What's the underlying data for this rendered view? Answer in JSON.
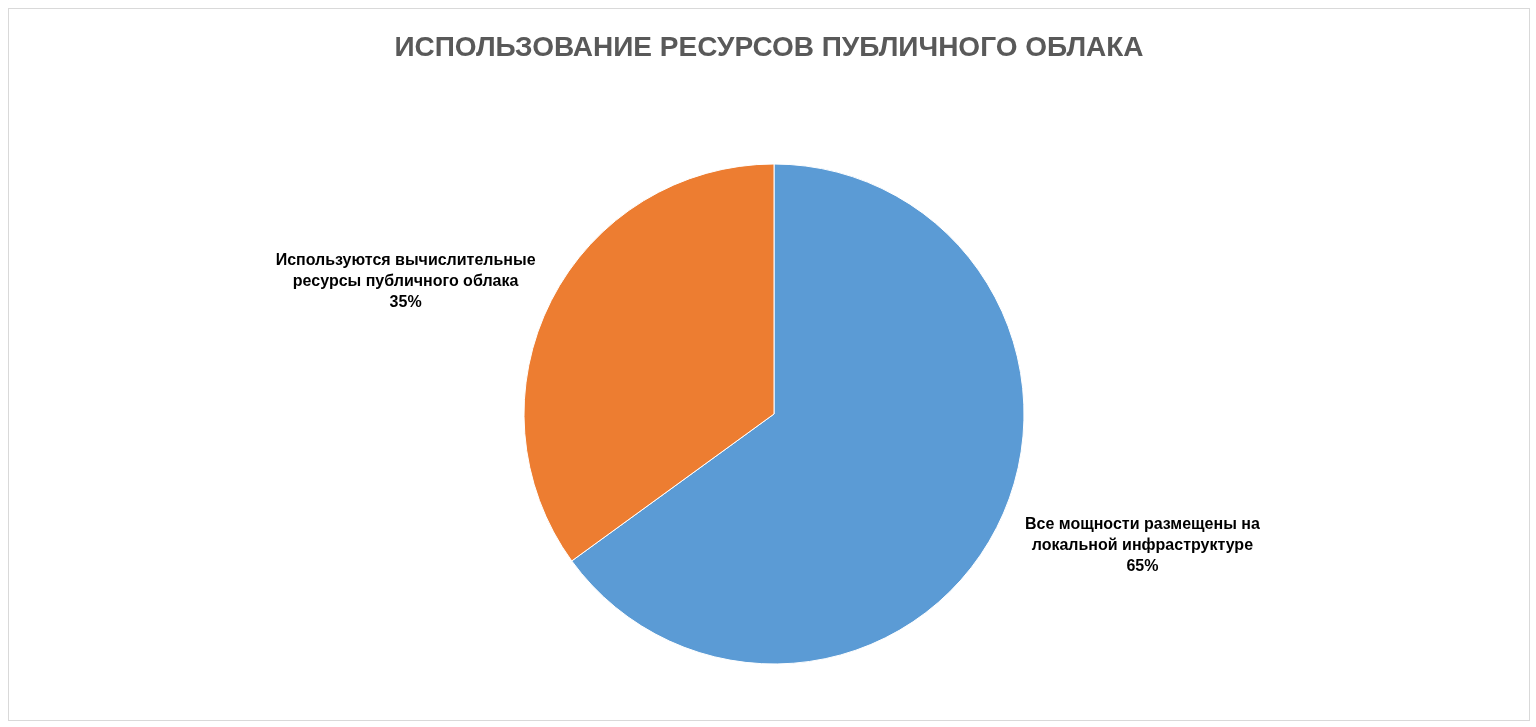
{
  "chart_data": {
    "type": "pie",
    "title": "ИСПОЛЬЗОВАНИЕ РЕСУРСОВ ПУБЛИЧНОГО ОБЛАКА",
    "categories": [
      "Все мощности размещены на локальной инфраструктуре",
      "Используются вычислительные ресурсы публичного облака"
    ],
    "values": [
      65,
      35
    ],
    "colors": [
      "#5b9bd5",
      "#ed7d31"
    ],
    "value_labels": [
      "65%",
      "35%"
    ],
    "legend": false
  }
}
